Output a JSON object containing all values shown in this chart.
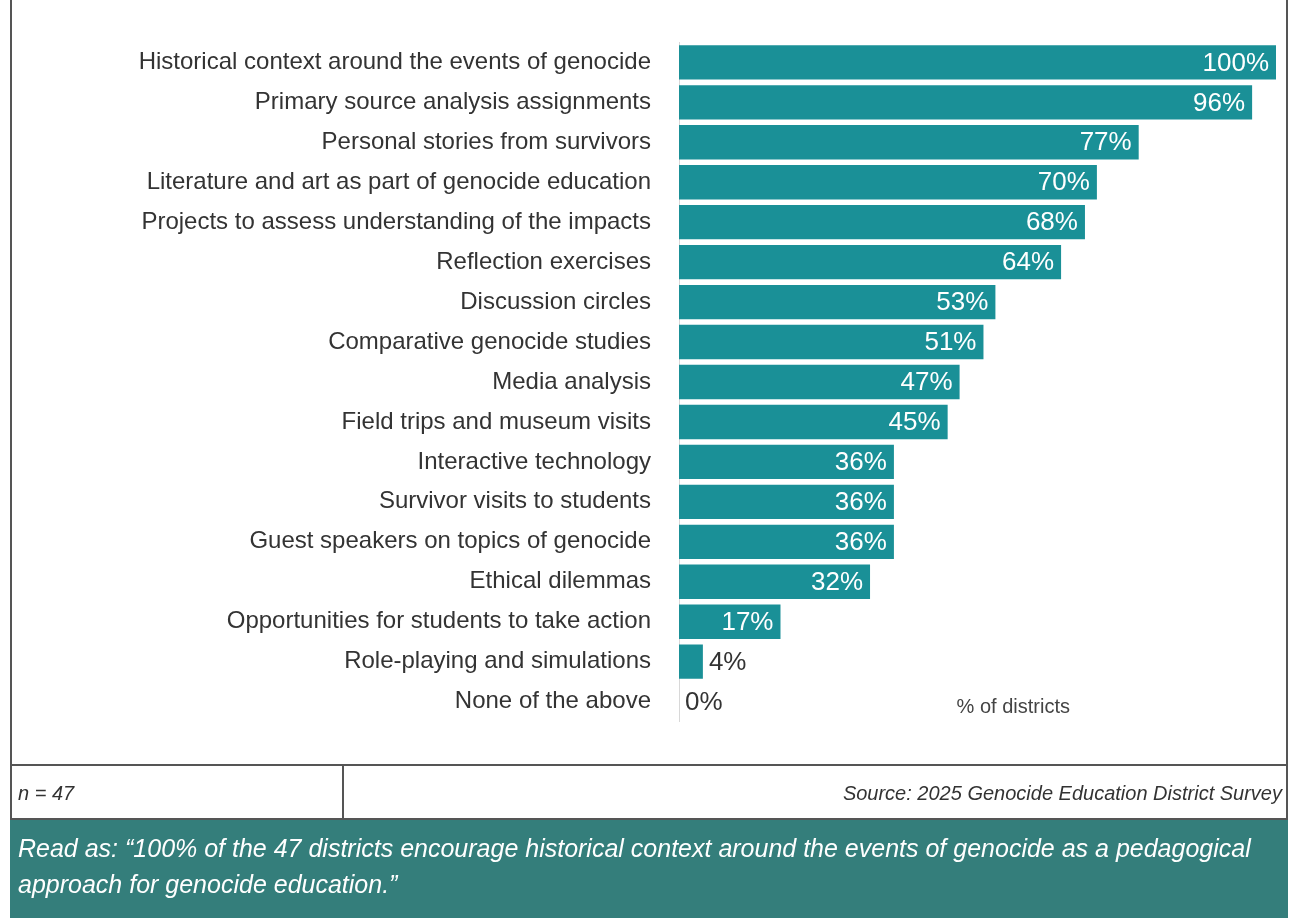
{
  "chart_data": {
    "type": "bar",
    "orientation": "horizontal",
    "categories": [
      "Historical context around the events of genocide",
      "Primary source analysis assignments",
      "Personal stories from survivors",
      "Literature and art as part of genocide education",
      "Projects to assess understanding of the impacts",
      "Reflection exercises",
      "Discussion circles",
      "Comparative genocide studies",
      "Media analysis",
      "Field trips and museum visits",
      "Interactive technology",
      "Survivor visits to students",
      "Guest speakers on topics of genocide",
      "Ethical dilemmas",
      "Opportunities for students to take action",
      "Role-playing and simulations",
      "None of the above"
    ],
    "values": [
      100,
      96,
      77,
      70,
      68,
      64,
      53,
      51,
      47,
      45,
      36,
      36,
      36,
      32,
      17,
      4,
      0
    ],
    "value_labels": [
      "100%",
      "96%",
      "77%",
      "70%",
      "68%",
      "64%",
      "53%",
      "51%",
      "47%",
      "45%",
      "36%",
      "36%",
      "36%",
      "32%",
      "17%",
      "4%",
      "0%"
    ],
    "color": "#1a9097",
    "xlabel": "% of districts",
    "tick_labels": "y",
    "grid": false,
    "legend": false,
    "annotations": [
      "n = 47",
      "Source: 2025 Genocide Education District Survey",
      "Read as: “100% of the 47 districts encourage historical context around the events of genocide as a pedagogical approach for genocide education.”"
    ]
  }
}
